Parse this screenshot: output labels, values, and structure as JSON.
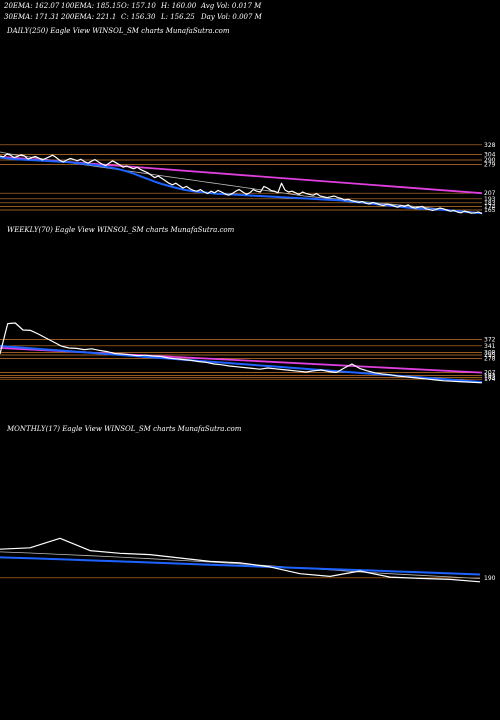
{
  "header": {
    "row1": [
      "20EMA: 162.07",
      "100EMA: 185.15",
      "O: 157.10",
      "H: 160.00",
      "Avg Vol: 0.017 M"
    ],
    "row2": [
      "30EMA: 171.31",
      "200EMA: 221.1",
      "C: 156.30",
      "L: 156.25",
      "Day Vol: 0.007 M"
    ]
  },
  "panels": {
    "daily_title": "DAILY(250) Eagle   View  WINSOL_SM charts MunafaSutra.com",
    "weekly_title": "WEEKLY(70) Eagle   View  WINSOL_SM charts MunafaSutra.com",
    "monthly_title": "MONTHLY(17) Eagle   View  WINSOL_SM charts MunafaSutra.com"
  },
  "colors": {
    "background": "#000000",
    "price": "#ffffff",
    "ema_fast": "#1e63ff",
    "trend_magenta": "#e040e0",
    "level_lines": "#c8782a",
    "ema_slow": "#bbbbbb"
  },
  "chart_data": [
    {
      "type": "line",
      "name": "daily",
      "title": "DAILY(250) Eagle View WINSOL_SM charts MunafaSutra.com",
      "ylim": [
        150,
        340
      ],
      "level_labels": [
        "328",
        "304",
        "290",
        "279",
        "207",
        "193",
        "183",
        "174",
        "165"
      ],
      "levels": [
        328,
        304,
        290,
        279,
        207,
        193,
        183,
        174,
        165
      ],
      "price": [
        300,
        298,
        305,
        302,
        296,
        299,
        303,
        300,
        292,
        296,
        299,
        295,
        290,
        294,
        298,
        302,
        296,
        289,
        285,
        290,
        294,
        291,
        288,
        292,
        286,
        282,
        287,
        291,
        285,
        280,
        276,
        282,
        288,
        283,
        278,
        272,
        275,
        271,
        268,
        272,
        266,
        262,
        258,
        252,
        246,
        250,
        244,
        238,
        232,
        228,
        232,
        226,
        220,
        224,
        218,
        214,
        212,
        216,
        210,
        206,
        212,
        208,
        214,
        210,
        205,
        202,
        206,
        212,
        216,
        210,
        204,
        208,
        216,
        212,
        210,
        224,
        220,
        214,
        212,
        208,
        232,
        215,
        210,
        212,
        208,
        204,
        210,
        206,
        204,
        202,
        206,
        200,
        198,
        196,
        198,
        200,
        196,
        194,
        190,
        192,
        188,
        186,
        184,
        186,
        182,
        180,
        184,
        181,
        178,
        176,
        180,
        178,
        175,
        172,
        176,
        174,
        178,
        172,
        170,
        172,
        174,
        168,
        166,
        164,
        166,
        170,
        168,
        165,
        162,
        164,
        160,
        158,
        162,
        160,
        157,
        158,
        160,
        156
      ],
      "ema_fast": [
        296,
        294,
        292,
        291,
        290,
        289,
        288,
        287,
        286,
        285,
        283,
        281,
        279,
        277,
        274,
        271,
        267,
        262,
        256,
        249,
        242,
        235,
        229,
        224,
        219,
        215,
        212,
        210,
        208,
        206,
        205,
        204,
        203,
        202,
        201,
        200,
        199,
        198,
        197,
        196,
        195,
        194,
        193,
        192,
        191,
        190,
        189,
        187,
        185,
        183,
        181,
        179,
        177,
        175,
        173,
        171,
        169,
        168,
        167,
        166,
        165,
        163,
        162,
        160,
        158,
        157
      ],
      "ema_slow": [
        310,
        306,
        302,
        299,
        296,
        293,
        290,
        287,
        284,
        281,
        278,
        275,
        272,
        269,
        266,
        263,
        260,
        257,
        254,
        251,
        248,
        245,
        242,
        239,
        236,
        233,
        230,
        227,
        224,
        221,
        218,
        215,
        212,
        209,
        206,
        203,
        200,
        198,
        196,
        194,
        192,
        190,
        188,
        186,
        184,
        182,
        180,
        178,
        176,
        174,
        172,
        170,
        168,
        166,
        164,
        162,
        160,
        158
      ],
      "trend_magenta": [
        [
          0,
          298
        ],
        [
          1,
          207
        ]
      ]
    },
    {
      "type": "line",
      "name": "weekly",
      "title": "WEEKLY(70) Eagle View WINSOL_SM charts MunafaSutra.com",
      "ylim": [
        150,
        480
      ],
      "level_labels": [
        "372",
        "341",
        "308",
        "295",
        "278",
        "207",
        "193",
        "183",
        "174"
      ],
      "levels": [
        372,
        341,
        308,
        295,
        278,
        207,
        193,
        183,
        174
      ],
      "price": [
        300,
        452,
        455,
        420,
        418,
        400,
        380,
        360,
        340,
        330,
        328,
        322,
        326,
        318,
        312,
        302,
        300,
        296,
        292,
        294,
        290,
        288,
        280,
        276,
        272,
        268,
        262,
        258,
        250,
        246,
        240,
        236,
        232,
        228,
        224,
        230,
        226,
        222,
        218,
        214,
        210,
        216,
        220,
        212,
        208,
        230,
        250,
        228,
        216,
        206,
        200,
        196,
        190,
        186,
        182,
        178,
        174,
        170,
        166,
        164,
        162,
        160,
        158,
        156
      ],
      "ema_fast": [
        340,
        336,
        332,
        328,
        324,
        320,
        316,
        312,
        308,
        304,
        300,
        296,
        292,
        288,
        284,
        280,
        276,
        272,
        268,
        264,
        260,
        256,
        252,
        248,
        244,
        240,
        236,
        232,
        228,
        224,
        220,
        216,
        212,
        208,
        204,
        200,
        196,
        192,
        188,
        184,
        180,
        176,
        172,
        168,
        164,
        160
      ],
      "trend_magenta": [
        [
          0,
          330
        ],
        [
          1,
          207
        ]
      ]
    },
    {
      "type": "line",
      "name": "monthly",
      "title": "MONTHLY(17) Eagle View WINSOL_SM charts MunafaSutra.com",
      "ylim": [
        100,
        600
      ],
      "level_labels": [
        "190"
      ],
      "levels": [
        190
      ],
      "price": [
        400,
        410,
        480,
        390,
        370,
        360,
        335,
        310,
        300,
        270,
        220,
        200,
        240,
        195,
        185,
        178,
        160
      ],
      "ema_fast": [
        340,
        334,
        326,
        318,
        310,
        302,
        294,
        286,
        278,
        270,
        262,
        254,
        246,
        238,
        230,
        222,
        214
      ],
      "ema_slow": [
        380,
        372,
        362,
        352,
        342,
        330,
        318,
        306,
        292,
        278,
        262,
        248,
        232,
        220,
        208,
        196,
        184
      ]
    }
  ]
}
